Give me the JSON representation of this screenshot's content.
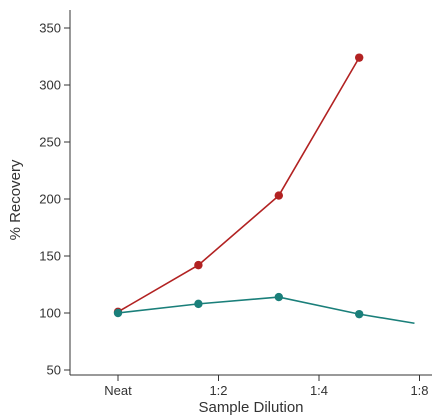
{
  "chart_data": {
    "type": "line",
    "xlabel": "Sample Dilution",
    "ylabel": "% Recovery",
    "x_ticks": [
      "Neat",
      "1:2",
      "1:4",
      "1:8"
    ],
    "ylim": [
      50,
      360
    ],
    "y_ticks": [
      50,
      100,
      150,
      200,
      250,
      300,
      350
    ],
    "grid": false,
    "series": [
      {
        "color": "#b22222",
        "points": [
          {
            "x": 0,
            "y": 101
          },
          {
            "x": 0.8,
            "y": 142
          },
          {
            "x": 1.6,
            "y": 203
          },
          {
            "x": 2.4,
            "y": 324
          }
        ],
        "marker_count": 4
      },
      {
        "color": "#1a7f7a",
        "points": [
          {
            "x": 0,
            "y": 100
          },
          {
            "x": 0.8,
            "y": 108
          },
          {
            "x": 1.6,
            "y": 114
          },
          {
            "x": 2.4,
            "y": 99
          },
          {
            "x": 2.95,
            "y": 91
          }
        ],
        "marker_count": 4
      }
    ]
  }
}
